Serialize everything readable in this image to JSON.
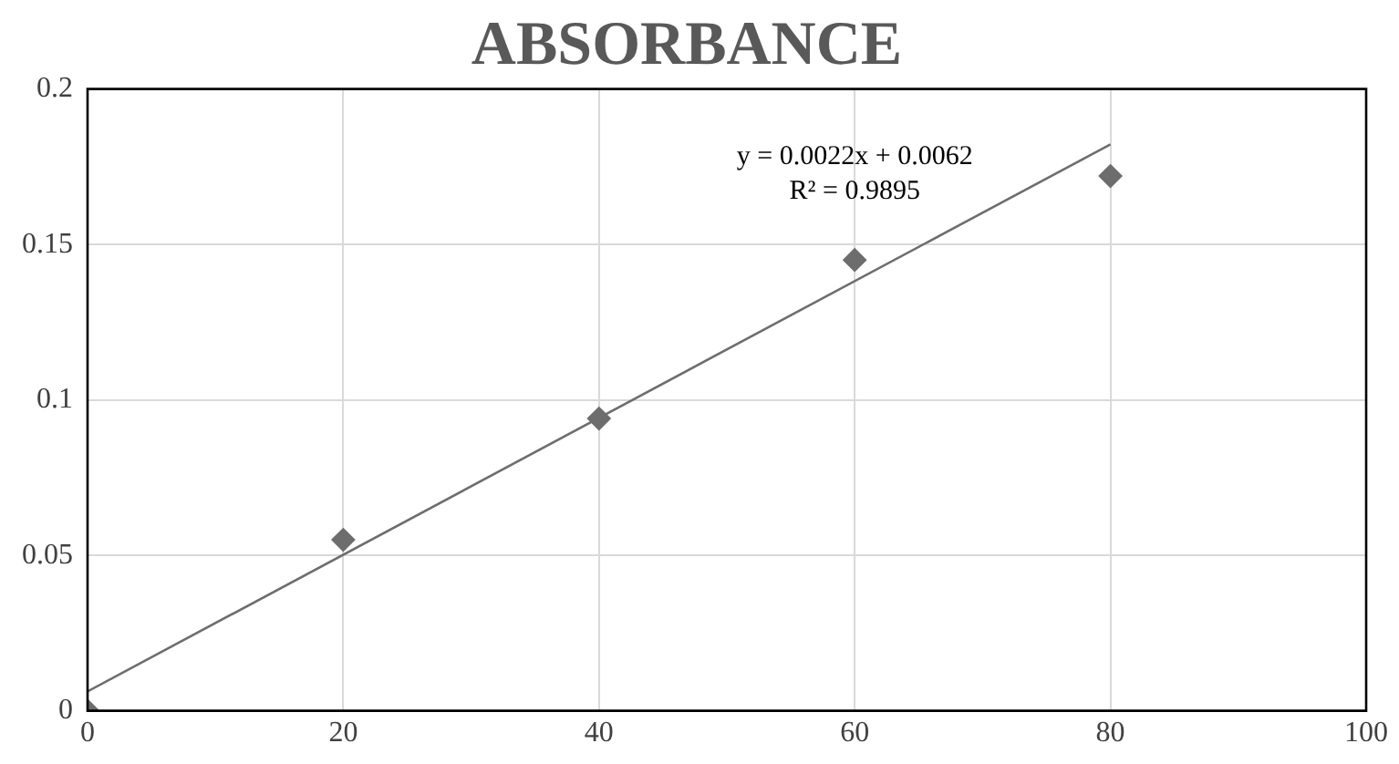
{
  "chart_data": {
    "type": "scatter",
    "title": "ABSORBANCE",
    "x": [
      0,
      20,
      40,
      60,
      80
    ],
    "series": [
      {
        "color": "#6d6d6d",
        "values": [
          0,
          0.055,
          0.094,
          0.145,
          0.172
        ],
        "marker": "diamond"
      },
      {
        "type": "line",
        "color": "#6d6d6d",
        "x": [
          0,
          80
        ],
        "values": [
          0.0062,
          0.1822
        ],
        "marker": "none"
      }
    ],
    "xlim": [
      0,
      100
    ],
    "xticks": [
      0,
      20,
      40,
      60,
      80,
      100
    ],
    "ylim": [
      0,
      0.2
    ],
    "yticks": [
      0,
      0.05,
      0.1,
      0.15,
      0.2
    ],
    "grid": true,
    "legend": false,
    "annotations": [
      "y = 0.0022x + 0.0062",
      "R² = 0.9895"
    ]
  }
}
